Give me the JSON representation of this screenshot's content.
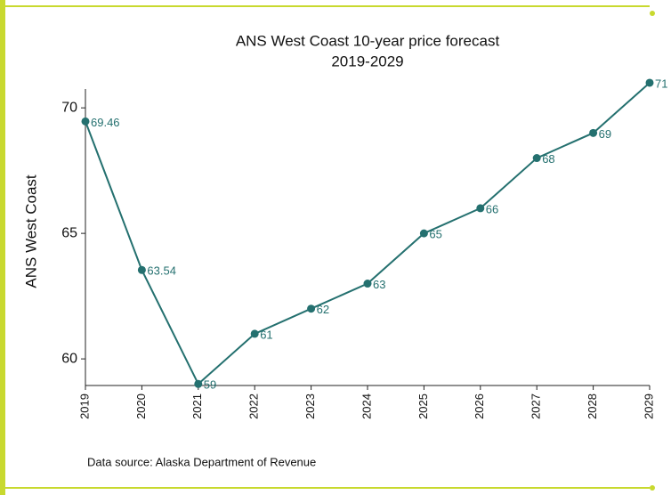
{
  "chart_data": {
    "type": "line",
    "title": "ANS West Coast 10-year price forecast",
    "subtitle": "2019-2029",
    "ylabel": "ANS West Coast",
    "note": "Data source: Alaska Department of Revenue",
    "x": [
      2019,
      2020,
      2021,
      2022,
      2023,
      2024,
      2025,
      2026,
      2027,
      2028,
      2029
    ],
    "series": [
      {
        "name": "ANS West Coast",
        "color": "#24706f",
        "values": [
          69.46,
          63.54,
          59,
          61,
          62,
          63,
          65,
          66,
          68,
          69,
          71
        ]
      }
    ],
    "xlim": [
      2019,
      2029
    ],
    "xticks": [
      2019,
      2020,
      2021,
      2022,
      2023,
      2024,
      2025,
      2026,
      2027,
      2028,
      2029
    ],
    "ylim": [
      58.94,
      70.75
    ],
    "yticks": [
      60,
      65,
      70
    ],
    "grid": false
  }
}
